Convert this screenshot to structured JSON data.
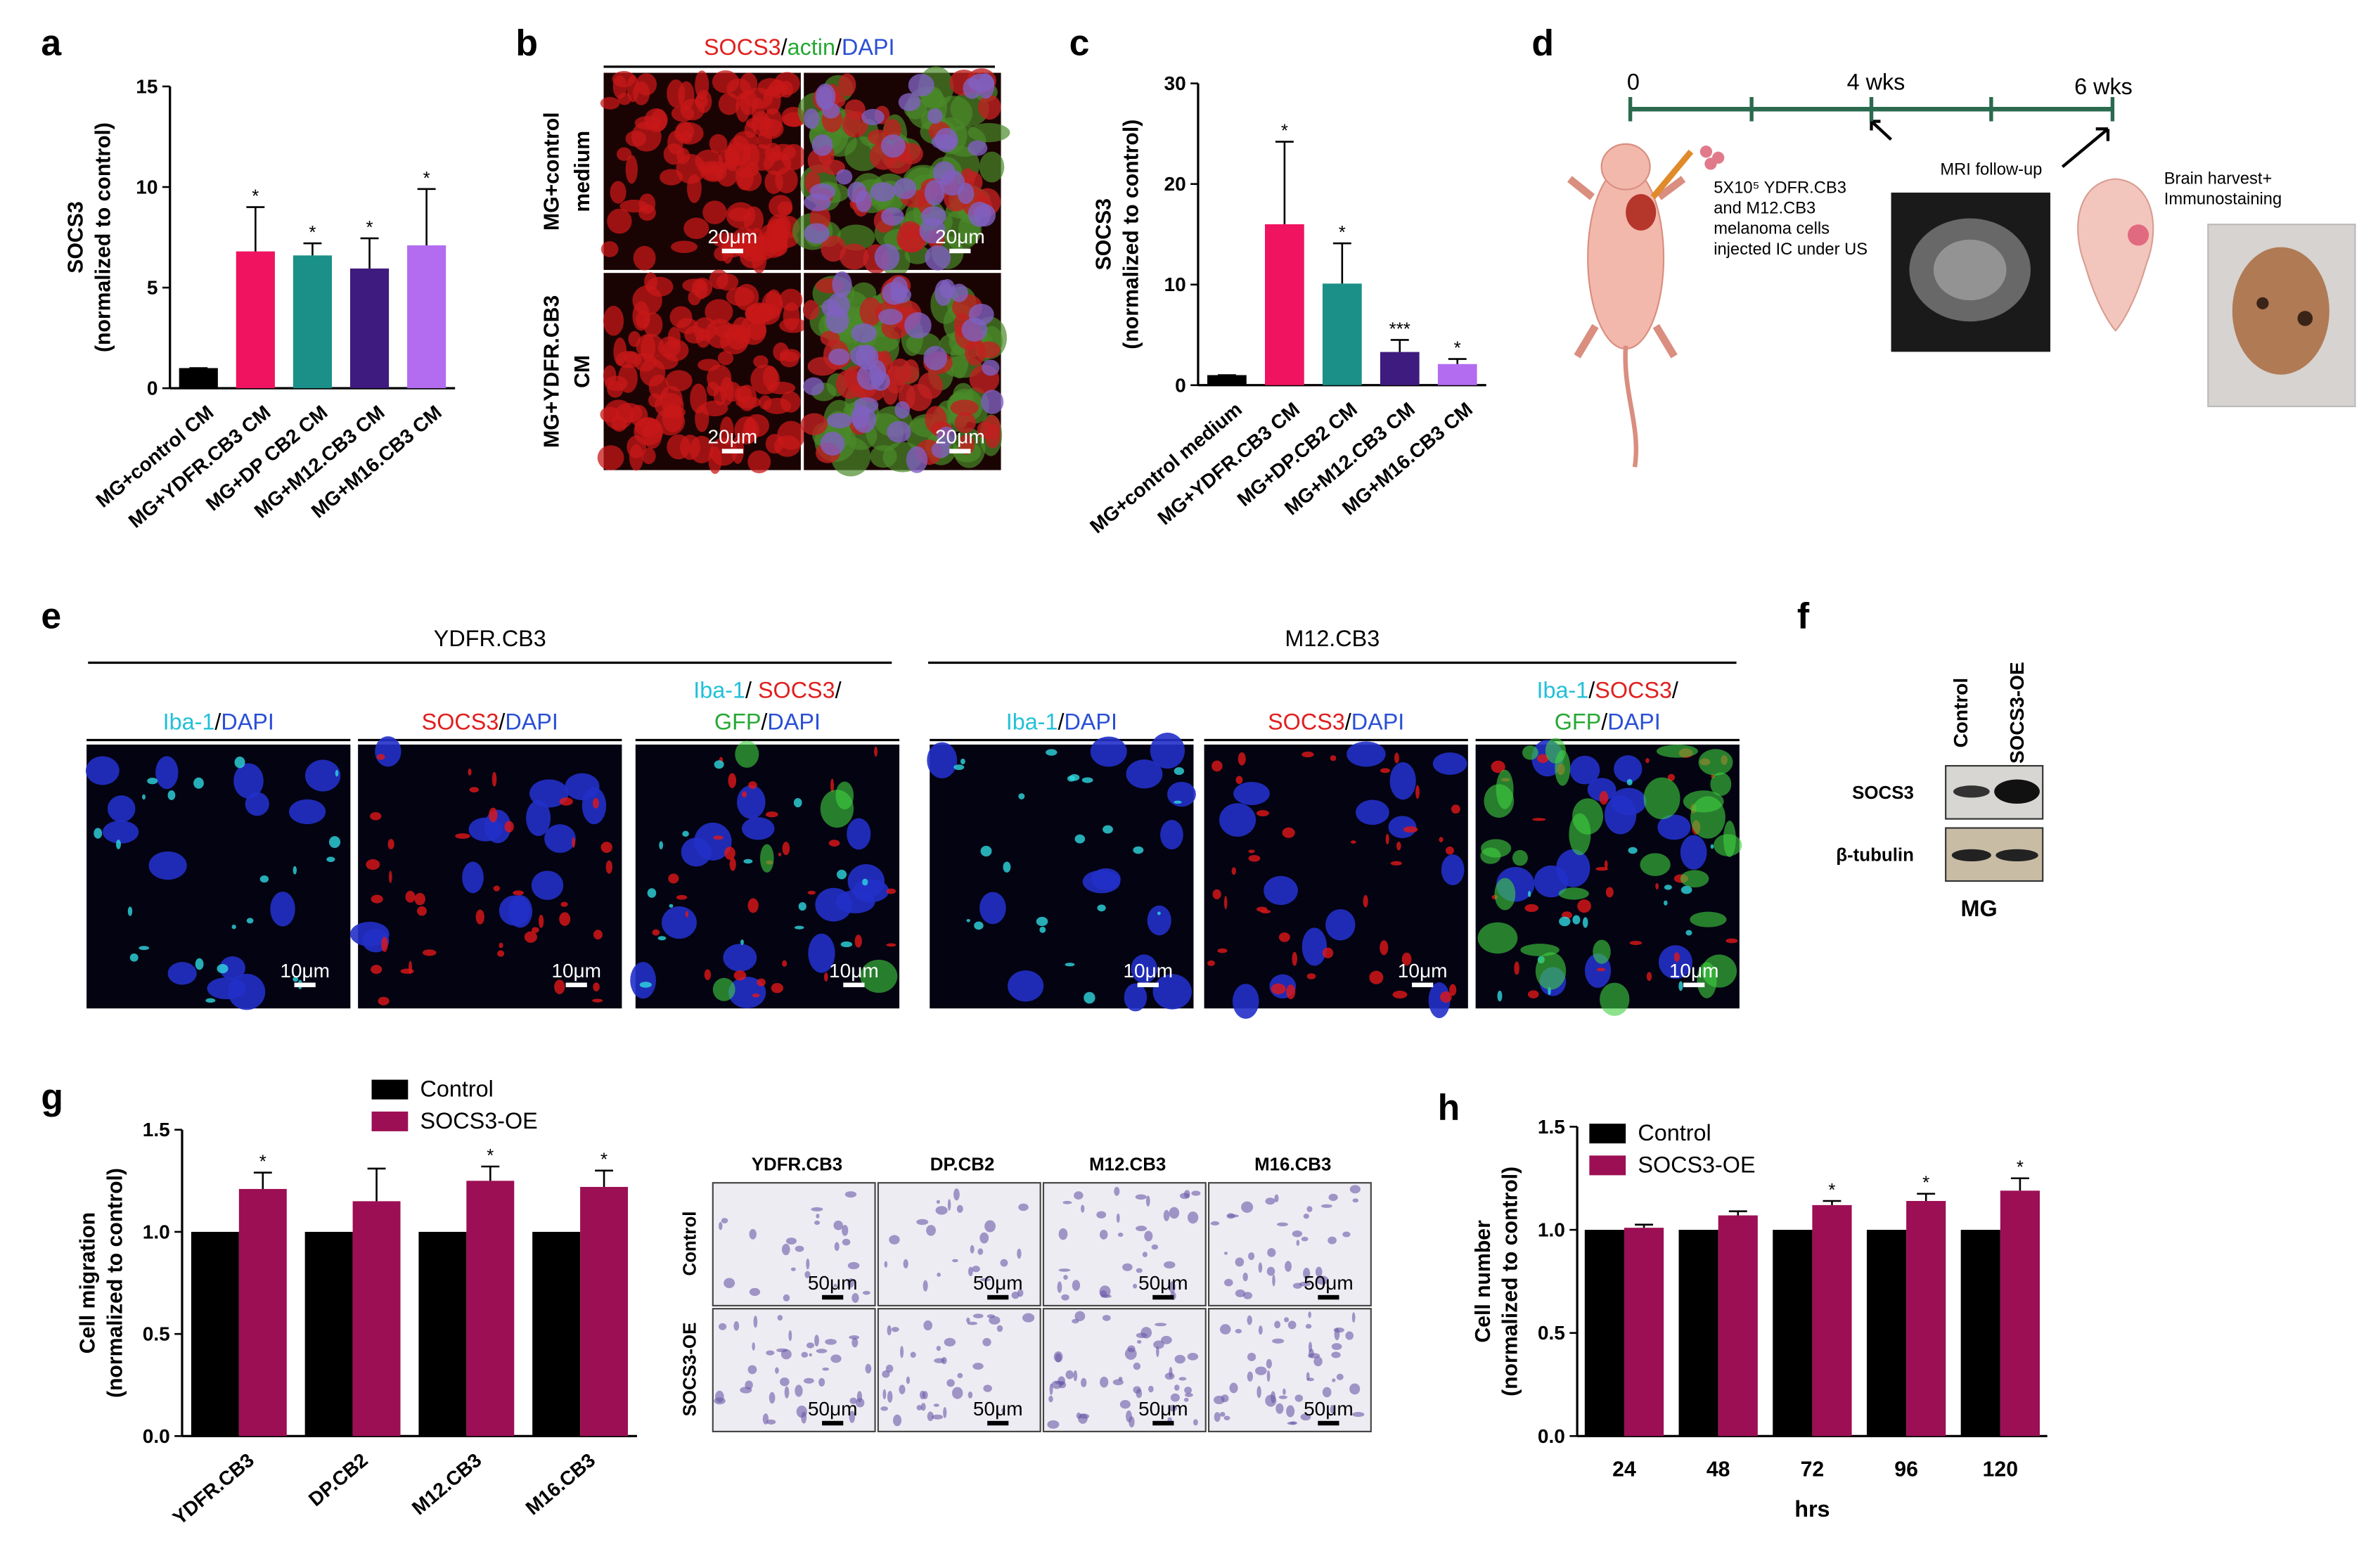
{
  "panel_letters": [
    "a",
    "b",
    "c",
    "d",
    "e",
    "f",
    "g",
    "h"
  ],
  "chart_data": [
    {
      "type": "bar",
      "y_label": [
        "SOCS3",
        "(normalized to control)"
      ],
      "categories": [
        "MG+control CM",
        "MG+YDFR.CB3 CM",
        "MG+DP CB2 CM",
        "MG+M12.CB3 CM",
        "MG+M16.CB3 CM"
      ],
      "values": [
        1,
        6.8,
        6.6,
        5.95,
        7.1
      ],
      "errors": [
        0,
        2.2,
        0.6,
        1.5,
        2.8
      ],
      "colors": [
        "#000000",
        "#f0135f",
        "#1a9088",
        "#3e1b7e",
        "#b36cf0"
      ],
      "significance": [
        null,
        "*",
        "*",
        "*",
        "*"
      ],
      "ylim": [
        0,
        15
      ],
      "yticks": [
        0,
        5,
        10,
        15
      ]
    },
    {
      "type": "bar",
      "y_label": [
        "SOCS3",
        "(normalized to control)"
      ],
      "categories": [
        "MG+control medium",
        "MG+YDFR.CB3 CM",
        "MG+DP.CB2 CM",
        "MG+M12.CB3 CM",
        "MG+M16.CB3 CM"
      ],
      "values": [
        1,
        16,
        10.1,
        3.3,
        2.1
      ],
      "errors": [
        0,
        8.2,
        4,
        1.2,
        0.5
      ],
      "colors": [
        "#000000",
        "#f0135f",
        "#1a9088",
        "#3e1b7e",
        "#b36cf0"
      ],
      "significance": [
        null,
        "*",
        "*",
        "***",
        "*"
      ],
      "ylim": [
        0,
        30
      ],
      "yticks": [
        0,
        10,
        20,
        30
      ]
    },
    {
      "type": "grouped_bar",
      "y_label": [
        "Cell migration",
        "(normalized to control)"
      ],
      "categories": [
        "YDFR.CB3",
        "DP.CB2",
        "M12.CB3",
        "M16.CB3"
      ],
      "series": [
        {
          "name": "Control",
          "color": "#000000",
          "values": [
            1,
            1,
            1,
            1
          ]
        },
        {
          "name": "SOCS3-OE",
          "color": "#9c0f54",
          "values": [
            1.21,
            1.15,
            1.25,
            1.22
          ],
          "errors": [
            0.08,
            0.16,
            0.07,
            0.08
          ],
          "significance": [
            "*",
            null,
            "*",
            "*"
          ]
        }
      ],
      "legend": "top",
      "ylim": [
        0,
        1.5
      ],
      "yticks": [
        {
          "value": 0,
          "label": "0.0"
        },
        0.5,
        {
          "value": 1,
          "label": "1.0"
        },
        1.5
      ]
    },
    {
      "type": "grouped_bar",
      "y_label": [
        "Cell number",
        "(normalized to control)"
      ],
      "x_label": "hrs",
      "categories": [
        "24",
        "48",
        "72",
        "96",
        "120"
      ],
      "series": [
        {
          "name": "Control",
          "color": "#000000",
          "values": [
            1,
            1,
            1,
            1,
            1
          ]
        },
        {
          "name": "SOCS3-OE",
          "color": "#9c0f54",
          "values": [
            1.01,
            1.07,
            1.12,
            1.14,
            1.19
          ],
          "errors": [
            0.015,
            0.02,
            0.02,
            0.035,
            0.06
          ],
          "significance": [
            null,
            null,
            "*",
            "*",
            "*"
          ]
        }
      ],
      "legend": "upper left",
      "ylim": [
        0,
        1.5
      ],
      "yticks": [
        {
          "value": 0,
          "label": "0.0"
        },
        0.5,
        {
          "value": 1,
          "label": "1.0"
        },
        1.5
      ]
    }
  ],
  "panel_b": {
    "header": [
      {
        "text": "SOCS3",
        "color": "#e0201f"
      },
      {
        "text": "/",
        "color": "#000000"
      },
      {
        "text": "actin",
        "color": "#27a834"
      },
      {
        "text": "/",
        "color": "#000000"
      },
      {
        "text": "DAPI",
        "color": "#2a4fd6"
      }
    ],
    "row_labels": [
      [
        "MG+control",
        "medium"
      ],
      [
        "MG+YDFR.CB3",
        "CM"
      ]
    ],
    "scale_labels": [
      "20μm",
      "20μm",
      "20μm",
      "20μm"
    ]
  },
  "panel_d": {
    "time_labels": [
      "0",
      "4 wks",
      "6 wks"
    ],
    "injection": [
      "5X10⁵ YDFR.CB3",
      "and M12.CB3",
      "melanoma cells",
      "injected IC under US"
    ],
    "mri": "MRI follow-up",
    "harvest": [
      "Brain harvest+",
      "Immunostaining"
    ]
  },
  "panel_e": {
    "groups": [
      "YDFR.CB3",
      "M12.CB3"
    ],
    "columns": [
      [
        [
          {
            "text": "Iba-1",
            "color": "#22c0d8"
          },
          {
            "text": "/",
            "color": "#000000"
          },
          {
            "text": "DAPI",
            "color": "#2a4fd6"
          }
        ]
      ],
      [
        [
          {
            "text": "SOCS3",
            "color": "#e0201f"
          },
          {
            "text": "/",
            "color": "#000000"
          },
          {
            "text": "DAPI",
            "color": "#2a4fd6"
          }
        ]
      ],
      [
        [
          {
            "text": "Iba-1",
            "color": "#22c0d8"
          },
          {
            "text": "/ ",
            "color": "#000000"
          },
          {
            "text": "SOCS3",
            "color": "#e0201f"
          },
          {
            "text": "/",
            "color": "#000000"
          }
        ],
        [
          {
            "text": "GFP",
            "color": "#27a834"
          },
          {
            "text": "/",
            "color": "#000000"
          },
          {
            "text": "DAPI",
            "color": "#2a4fd6"
          }
        ]
      ],
      [
        [
          {
            "text": "Iba-1",
            "color": "#22c0d8"
          },
          {
            "text": "/",
            "color": "#000000"
          },
          {
            "text": "DAPI",
            "color": "#2a4fd6"
          }
        ]
      ],
      [
        [
          {
            "text": "SOCS3",
            "color": "#e0201f"
          },
          {
            "text": "/",
            "color": "#000000"
          },
          {
            "text": "DAPI",
            "color": "#2a4fd6"
          }
        ]
      ],
      [
        [
          {
            "text": "Iba-1",
            "color": "#22c0d8"
          },
          {
            "text": "/",
            "color": "#000000"
          },
          {
            "text": "SOCS3",
            "color": "#e0201f"
          },
          {
            "text": "/",
            "color": "#000000"
          }
        ],
        [
          {
            "text": "GFP",
            "color": "#27a834"
          },
          {
            "text": "/",
            "color": "#000000"
          },
          {
            "text": "DAPI",
            "color": "#2a4fd6"
          }
        ]
      ]
    ],
    "scale_labels": [
      "10μm",
      "10μm",
      "10μm",
      "10μm",
      "10μm",
      "10μm"
    ]
  },
  "panel_f": {
    "lanes": [
      "Control",
      "SOCS3-OE"
    ],
    "rows": [
      "SOCS3",
      "β-tubulin"
    ],
    "cell": "MG"
  },
  "panel_g_images": {
    "columns": [
      "YDFR.CB3",
      "DP.CB2",
      "M12.CB3",
      "M16.CB3"
    ],
    "rows": [
      "Control",
      "SOCS3-OE"
    ],
    "scale_labels": [
      "50μm",
      "50μm",
      "50μm",
      "50μm",
      "50μm",
      "50μm",
      "50μm",
      "50μm"
    ]
  }
}
